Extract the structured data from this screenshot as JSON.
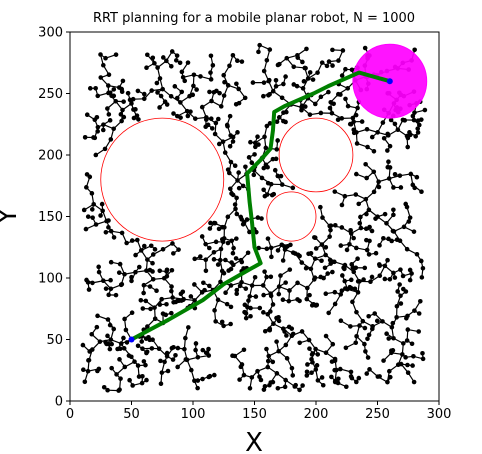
{
  "chart_data": {
    "type": "scatter",
    "title": "RRT planning for a mobile planar robot, N = 1000",
    "xlabel": "X",
    "ylabel": "Y",
    "xlim": [
      0,
      300
    ],
    "ylim": [
      0,
      300
    ],
    "xticks": [
      0,
      50,
      100,
      150,
      200,
      250,
      300
    ],
    "yticks": [
      0,
      50,
      100,
      150,
      200,
      250,
      300
    ],
    "grid": false,
    "obstacles": [
      {
        "cx": 75,
        "cy": 180,
        "r": 50
      },
      {
        "cx": 200,
        "cy": 200,
        "r": 30
      },
      {
        "cx": 180,
        "cy": 150,
        "r": 20
      }
    ],
    "goal_region": {
      "cx": 260,
      "cy": 260,
      "r": 30,
      "color": "#ff00ff"
    },
    "start": {
      "x": 50,
      "y": 50,
      "color": "#0000ff"
    },
    "goal": {
      "x": 260,
      "y": 260,
      "color": "#0000ff"
    },
    "path": {
      "color": "#008000",
      "points": [
        [
          50,
          50
        ],
        [
          80,
          66
        ],
        [
          108,
          82
        ],
        [
          125,
          95
        ],
        [
          146,
          107
        ],
        [
          155,
          112
        ],
        [
          150,
          125
        ],
        [
          148,
          145
        ],
        [
          146,
          162
        ],
        [
          144,
          185
        ],
        [
          155,
          196
        ],
        [
          163,
          205
        ],
        [
          165,
          220
        ],
        [
          166,
          235
        ],
        [
          175,
          240
        ],
        [
          198,
          250
        ],
        [
          210,
          256
        ],
        [
          235,
          267
        ],
        [
          260,
          260
        ]
      ]
    },
    "tree": {
      "node_count": 1000,
      "node_color": "#000000",
      "edge_color": "#000000"
    },
    "colors": {
      "obstacle_edge": "#ff0000",
      "goal_region": "#ff00ff",
      "path": "#008000"
    }
  }
}
